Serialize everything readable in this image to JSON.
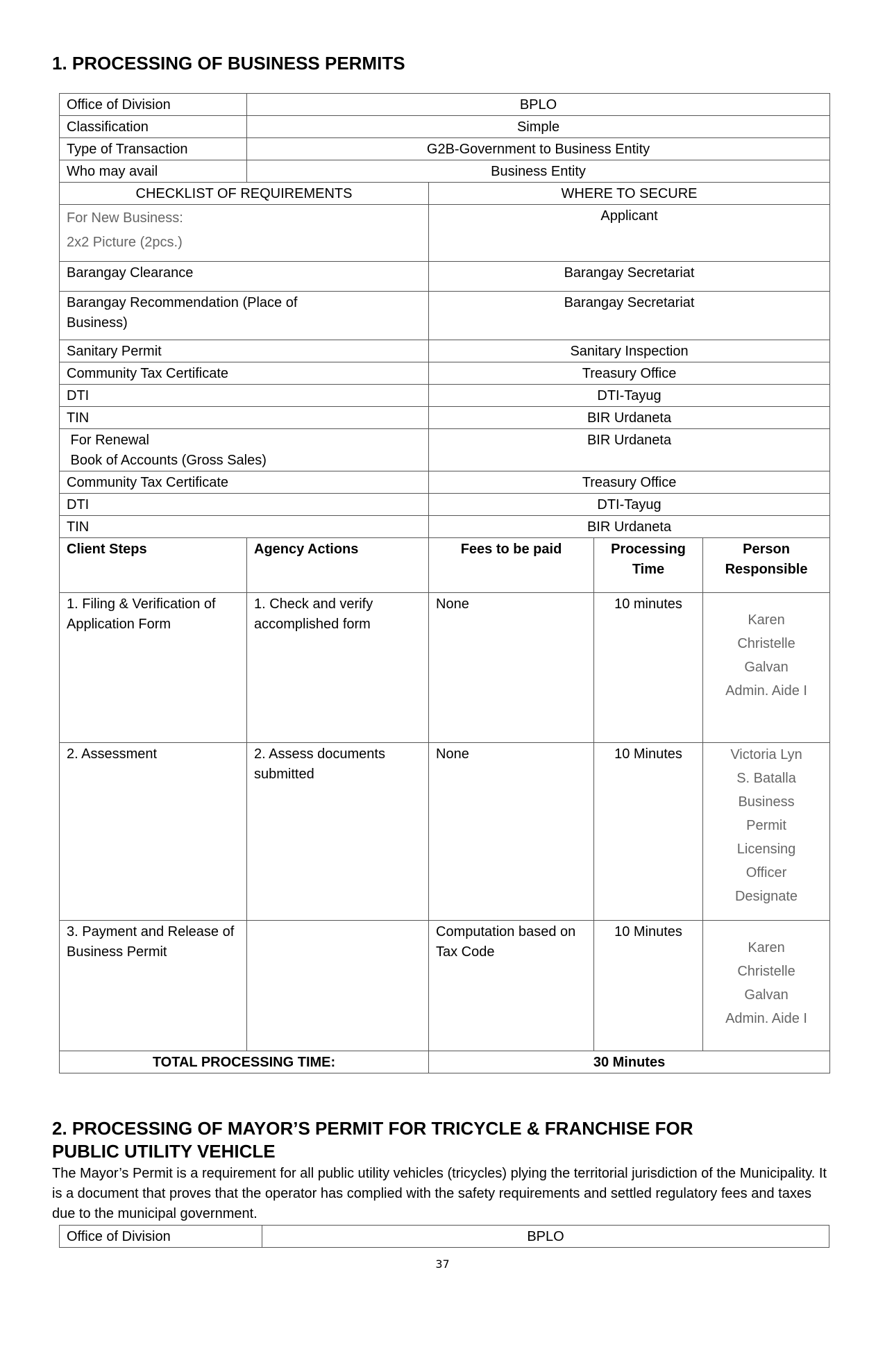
{
  "section1": {
    "title": "1. PROCESSING OF BUSINESS PERMITS",
    "info": [
      {
        "label": "Office of Division",
        "value": "BPLO"
      },
      {
        "label": "Classification",
        "value": "Simple"
      },
      {
        "label": "Type of Transaction",
        "value": "G2B-Government to Business Entity"
      },
      {
        "label": "Who may avail",
        "value": "Business Entity"
      }
    ],
    "checklist_header": "CHECKLIST OF REQUIREMENTS",
    "where_header": "WHERE TO SECURE",
    "requirements": [
      {
        "item": [
          "For New Business:",
          "2x2 Picture (2pcs.)"
        ],
        "where": "Applicant"
      },
      {
        "item": [
          "Barangay Clearance"
        ],
        "where": "Barangay Secretariat"
      },
      {
        "item": [
          "Barangay Recommendation (Place of",
          "Business)"
        ],
        "where": "Barangay Secretariat"
      },
      {
        "item": [
          "Sanitary Permit"
        ],
        "where": "Sanitary Inspection"
      },
      {
        "item": [
          "Community Tax Certificate"
        ],
        "where": "Treasury Office"
      },
      {
        "item": [
          "DTI"
        ],
        "where": "DTI-Tayug"
      },
      {
        "item": [
          "TIN"
        ],
        "where": "BIR Urdaneta"
      },
      {
        "item": [
          " For Renewal",
          " Book of Accounts (Gross Sales)"
        ],
        "where": "BIR Urdaneta"
      },
      {
        "item": [
          "Community Tax Certificate"
        ],
        "where": "Treasury Office"
      },
      {
        "item": [
          "DTI"
        ],
        "where": "DTI-Tayug"
      },
      {
        "item": [
          "TIN"
        ],
        "where": "BIR Urdaneta"
      }
    ],
    "step_headers": [
      "Client Steps",
      "Agency Actions",
      "Fees to be paid",
      "Processing Time",
      "Person Responsible"
    ],
    "steps": [
      {
        "client": "1. Filing & Verification of Application Form",
        "agency": "1. Check and verify accomplished form",
        "fees": "None",
        "time": "10 minutes",
        "person": [
          "Karen",
          "Christelle",
          "Galvan",
          "Admin. Aide I"
        ]
      },
      {
        "client": "2. Assessment",
        "agency": "2. Assess documents submitted",
        "fees": "None",
        "time": "10 Minutes",
        "person": [
          "Victoria Lyn",
          "S. Batalla",
          "Business",
          "Permit",
          "Licensing",
          "Officer",
          "Designate"
        ]
      },
      {
        "client": "3. Payment and Release of Business Permit",
        "agency": "",
        "fees": "Computation based on Tax Code",
        "time": "10 Minutes",
        "person": [
          "Karen",
          "Christelle",
          "Galvan",
          "Admin. Aide I"
        ]
      }
    ],
    "total_label": "TOTAL PROCESSING TIME:",
    "total_value": "30 Minutes"
  },
  "section2": {
    "title_line1": "2. PROCESSING OF MAYOR’S PERMIT FOR TRICYCLE & FRANCHISE FOR",
    "title_line2": "PUBLIC UTILITY VEHICLE",
    "paragraph": "The Mayor’s Permit is a requirement for all public utility vehicles (tricycles) plying the territorial jurisdiction of the Municipality. It is a document that proves that the operator has complied with the safety requirements and settled regulatory fees and taxes due to the municipal government.",
    "info": [
      {
        "label": "Office of Division",
        "value": "BPLO"
      }
    ]
  },
  "page_number": "37"
}
